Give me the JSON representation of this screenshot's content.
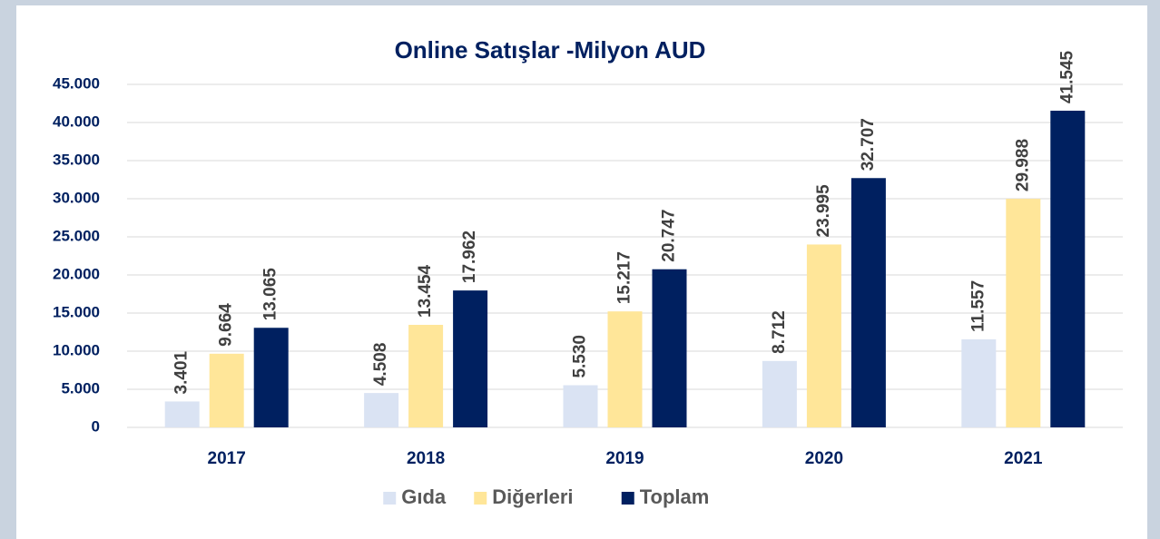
{
  "chart_data": {
    "type": "bar",
    "title": "Online Satışlar -Milyon AUD",
    "categories": [
      "2017",
      "2018",
      "2019",
      "2020",
      "2021"
    ],
    "series": [
      {
        "name": "Gıda",
        "color": "#dae3f3",
        "values": [
          3401,
          4508,
          5530,
          8712,
          11557
        ],
        "value_labels": [
          "3.401",
          "4.508",
          "5.530",
          "8.712",
          "11.557"
        ]
      },
      {
        "name": "Diğerleri",
        "color": "#ffe699",
        "values": [
          9664,
          13454,
          15217,
          23995,
          29988
        ],
        "value_labels": [
          "9.664",
          "13.454",
          "15.217",
          "23.995",
          "29.988"
        ]
      },
      {
        "name": "Toplam",
        "color": "#002060",
        "values": [
          13065,
          17962,
          20747,
          32707,
          41545
        ],
        "value_labels": [
          "13.065",
          "17.962",
          "20.747",
          "32.707",
          "41.545"
        ]
      }
    ],
    "ylim": [
      0,
      45000
    ],
    "yticks": [
      0,
      {
        "value": 5000,
        "label": "5.000"
      },
      {
        "value": 10000,
        "label": "10.000"
      },
      {
        "value": 15000,
        "label": "15.000"
      },
      {
        "value": 20000,
        "label": "20.000"
      },
      {
        "value": 25000,
        "label": "25.000"
      },
      {
        "value": 30000,
        "label": "30.000"
      },
      {
        "value": 35000,
        "label": "35.000"
      },
      {
        "value": 40000,
        "label": "40.000"
      },
      {
        "value": 45000,
        "label": "45.000"
      }
    ],
    "grid": true,
    "legend": "bottom"
  }
}
